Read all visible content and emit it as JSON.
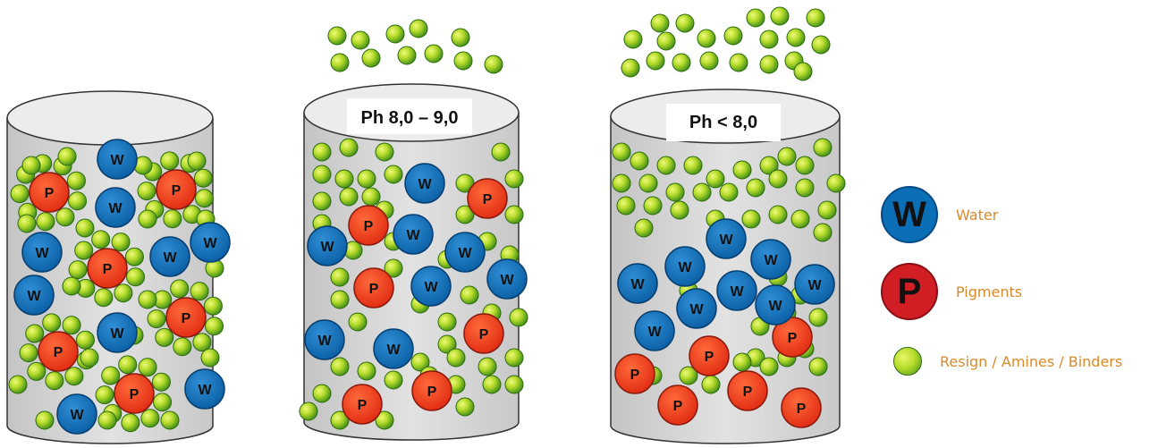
{
  "containers": [
    {
      "id": "mix",
      "label": ""
    },
    {
      "id": "ph_high",
      "label": "Ph 8,0 – 9,0"
    },
    {
      "id": "ph_low",
      "label": "Ph < 8,0"
    }
  ],
  "particle_letters": {
    "water": "W",
    "pigment": "P"
  },
  "legend": [
    {
      "symbol": "W",
      "label": "Water"
    },
    {
      "symbol": "P",
      "label": "Pigments"
    },
    {
      "symbol": "",
      "label": "Resign / Amines / Binders"
    }
  ],
  "colors": {
    "water": "#0b6fb8",
    "pigment": "#e8341c",
    "binder_light": "#e4f56a",
    "binder_dark": "#3f8f1a",
    "label_text": "#d98a2a",
    "container_body": "#d6d6d6"
  }
}
